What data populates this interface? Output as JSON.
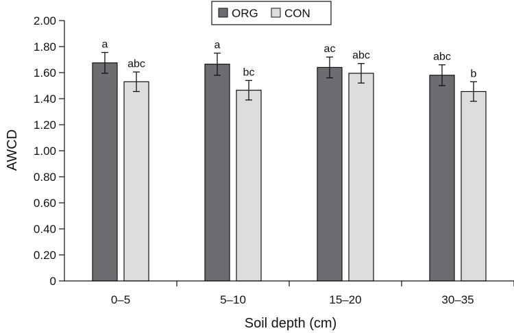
{
  "chart_data": {
    "type": "bar",
    "title": "",
    "xlabel": "Soil depth (cm)",
    "ylabel": "AWCD",
    "ylim": [
      0,
      2.0
    ],
    "yticks": [
      "0",
      "0.20",
      "0.40",
      "0.60",
      "0.80",
      "1.00",
      "1.20",
      "1.40",
      "1.60",
      "1.80",
      "2.00"
    ],
    "ytick_values": [
      0,
      0.2,
      0.4,
      0.6,
      0.8,
      1.0,
      1.2,
      1.4,
      1.6,
      1.8,
      2.0
    ],
    "categories": [
      "0–5",
      "5–10",
      "15–20",
      "30–35"
    ],
    "legend_position": "top-center",
    "grid": false,
    "series": [
      {
        "name": "ORG",
        "color": "#6b6d70",
        "values": [
          1.675,
          1.665,
          1.64,
          1.58
        ],
        "errors": [
          0.08,
          0.085,
          0.08,
          0.08
        ],
        "labels": [
          "a",
          "a",
          "ac",
          "abc"
        ]
      },
      {
        "name": "CON",
        "color": "#dcddde",
        "values": [
          1.53,
          1.465,
          1.595,
          1.455
        ],
        "errors": [
          0.075,
          0.075,
          0.075,
          0.075
        ],
        "labels": [
          "abc",
          "bc",
          "abc",
          "b"
        ]
      }
    ]
  }
}
